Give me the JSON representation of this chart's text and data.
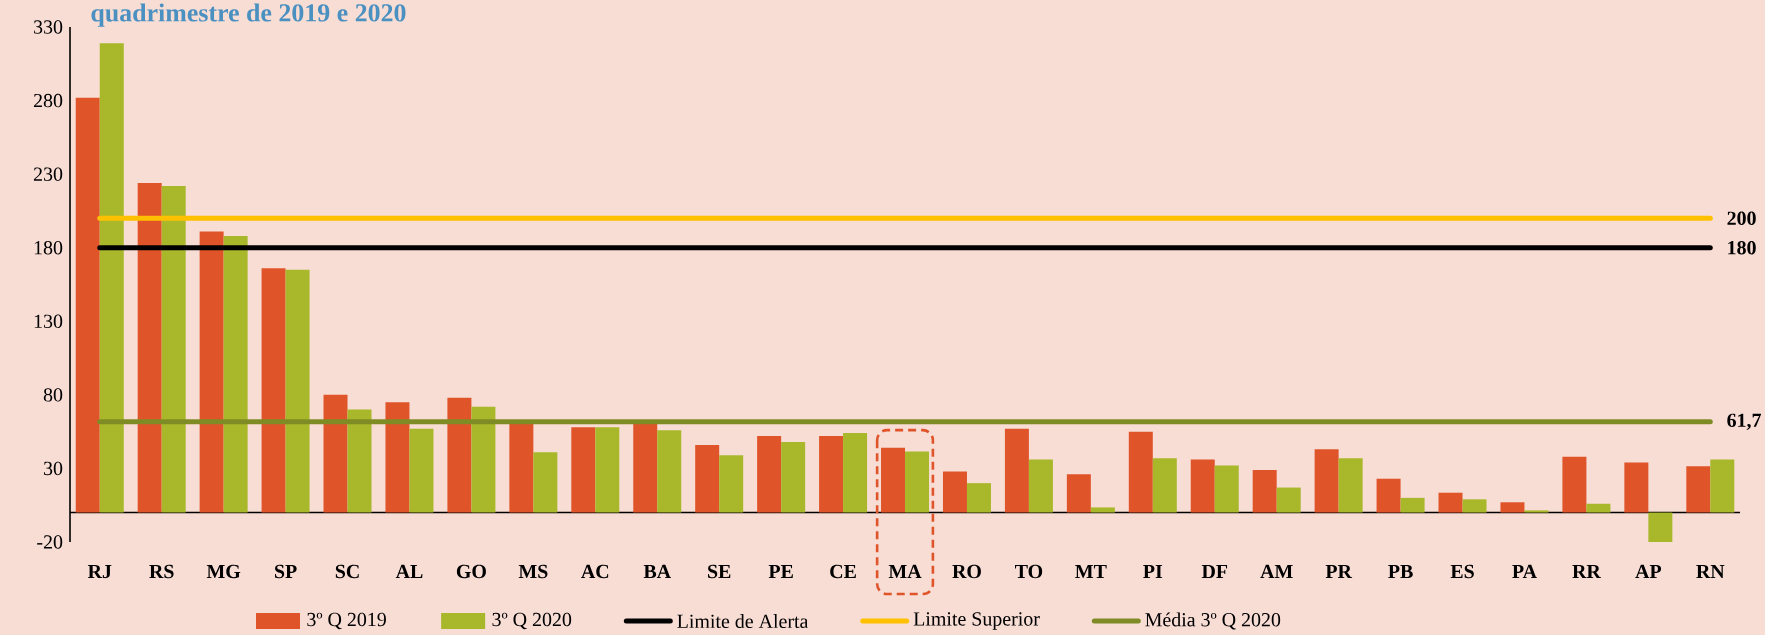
{
  "chart_data": {
    "type": "bar",
    "title": "quadrimestre de 2019 e 2020",
    "categories": [
      "RJ",
      "RS",
      "MG",
      "SP",
      "SC",
      "AL",
      "GO",
      "MS",
      "AC",
      "BA",
      "SE",
      "PE",
      "CE",
      "MA",
      "RO",
      "TO",
      "MT",
      "PI",
      "DF",
      "AM",
      "PR",
      "PB",
      "ES",
      "PA",
      "RR",
      "AP",
      "RN"
    ],
    "series": [
      {
        "name": "3º Q 2019",
        "color": "#e0542a",
        "values": [
          282,
          224,
          191,
          166,
          80,
          75,
          78,
          62,
          58,
          62,
          46,
          52,
          52,
          44,
          28,
          57,
          26,
          55,
          36,
          29,
          43,
          23,
          13.5,
          7,
          38,
          34,
          31.5
        ]
      },
      {
        "name": "3º Q 2020",
        "color": "#a8b82a",
        "values": [
          319,
          222,
          188,
          165,
          70,
          57,
          72,
          41,
          58,
          56,
          39,
          48,
          54,
          41.5,
          20,
          36,
          3.5,
          37,
          32,
          17,
          37,
          10,
          9,
          1.5,
          6,
          -20,
          36
        ]
      }
    ],
    "ref_lines": [
      {
        "axis": "y",
        "value": 180,
        "label": "Limite de Alerta",
        "color": "#000000"
      },
      {
        "axis": "y",
        "value": 200,
        "label": "Limite Superior",
        "color": "#ffc000"
      },
      {
        "axis": "y",
        "value": 61.7,
        "label": "Média 3º Q 2020",
        "color": "#7f8c25"
      }
    ],
    "annotations": [
      "180",
      "200",
      "61,7"
    ],
    "ylim": [
      -20,
      330
    ],
    "yticks": [
      -20,
      30,
      80,
      130,
      180,
      230,
      280,
      330
    ],
    "grid": false,
    "legend": "bottom"
  }
}
